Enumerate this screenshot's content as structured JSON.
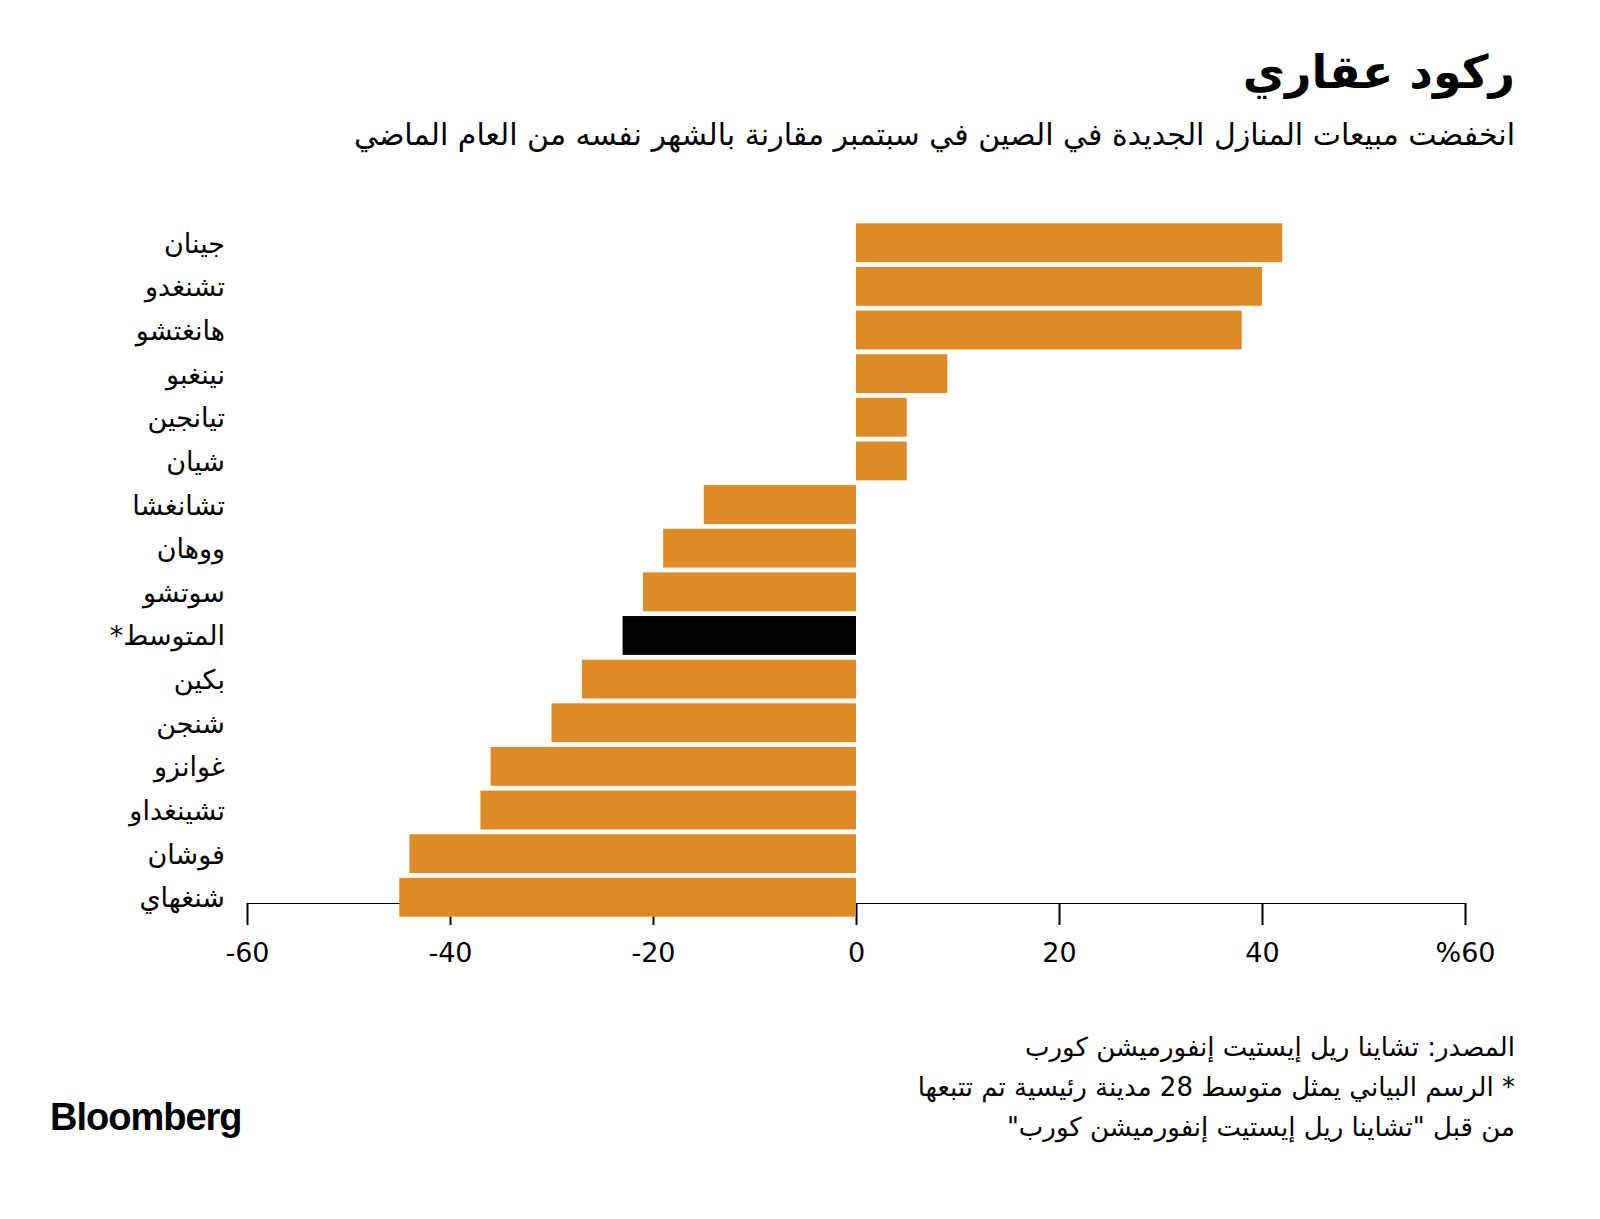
{
  "chart_data": {
    "type": "bar",
    "orientation": "horizontal",
    "title": "ركود عقاري",
    "subtitle": "انخفضت مبيعات المنازل الجديدة في الصين في سبتمبر مقارنة بالشهر نفسه من العام الماضي",
    "categories": [
      "جينان",
      "تشنغدو",
      "هانغتشو",
      "نينغبو",
      "تيانجين",
      "شيان",
      "تشانغشا",
      "ووهان",
      "سوتشو",
      "المتوسط*",
      "بكين",
      "شنجن",
      "غوانزو",
      "تشينغداو",
      "فوشان",
      "شنغهاي"
    ],
    "values": [
      42,
      40,
      38,
      9,
      5,
      5,
      -15,
      -19,
      -21,
      -23,
      -27,
      -30,
      -36,
      -37,
      -44,
      -45
    ],
    "colors": [
      "#dd8a27",
      "#dd8a27",
      "#dd8a27",
      "#dd8a27",
      "#dd8a27",
      "#dd8a27",
      "#dd8a27",
      "#dd8a27",
      "#dd8a27",
      "#000000",
      "#dd8a27",
      "#dd8a27",
      "#dd8a27",
      "#dd8a27",
      "#dd8a27",
      "#dd8a27"
    ],
    "xlim": [
      -60,
      60
    ],
    "xticks": [
      -60,
      -40,
      -20,
      0,
      20,
      40,
      {
        "value": 60,
        "label": "%60"
      }
    ],
    "grid": false,
    "source": "المصدر: تشاينا ريل إيستيت إنفورميشن كورب",
    "notes": [
      "* الرسم البياني يمثل متوسط 28 مدينة رئيسية تم تتبعها",
      "من قبل \"تشاينا ريل إيستيت إنفورميشن كورب\""
    ],
    "brand": "Bloomberg"
  }
}
